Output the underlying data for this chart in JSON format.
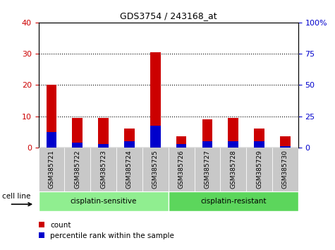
{
  "title": "GDS3754 / 243168_at",
  "samples": [
    "GSM385721",
    "GSM385722",
    "GSM385723",
    "GSM385724",
    "GSM385725",
    "GSM385726",
    "GSM385727",
    "GSM385728",
    "GSM385729",
    "GSM385730"
  ],
  "count_values": [
    20,
    9.5,
    9.5,
    6,
    30.5,
    3.5,
    9,
    9.5,
    6,
    3.5
  ],
  "percentile_values": [
    5,
    1.5,
    1,
    2,
    7,
    1,
    2,
    2,
    2,
    0.5
  ],
  "bar_color_count": "#cc0000",
  "bar_color_percentile": "#0000cc",
  "left_axis_color": "#cc0000",
  "right_axis_color": "#0000cc",
  "ylim_left": [
    0,
    40
  ],
  "ylim_right": [
    0,
    100
  ],
  "yticks_left": [
    0,
    10,
    20,
    30,
    40
  ],
  "yticks_right": [
    0,
    25,
    50,
    75,
    100
  ],
  "ytick_labels_right": [
    "0",
    "25",
    "50",
    "75",
    "100%"
  ],
  "grid_yticks": [
    10,
    20,
    30
  ],
  "background_color": "#ffffff",
  "plot_bg_color": "#ffffff",
  "tick_area_color": "#c8c8c8",
  "sensitive_bg": "#90ee90",
  "resistant_bg": "#5cd65c",
  "cell_line_label": "cell line",
  "legend_count": "count",
  "legend_percentile": "percentile rank within the sample",
  "bar_width": 0.4
}
